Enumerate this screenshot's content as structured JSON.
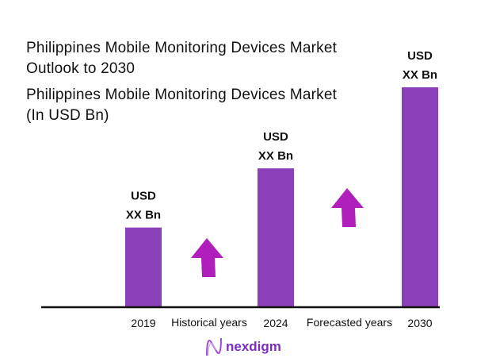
{
  "chart_data": {
    "type": "bar",
    "title": "Philippines Mobile Monitoring Devices Market Outlook to 2030",
    "subtitle": "Philippines Mobile Monitoring Devices Market (In USD Bn)",
    "categories": [
      "2019",
      "2024",
      "2030"
    ],
    "values": [
      null,
      null,
      null
    ],
    "data_labels": [
      [
        "USD",
        "XX Bn"
      ],
      [
        "USD",
        "XX Bn"
      ],
      [
        "USD",
        "XX Bn"
      ]
    ],
    "period_labels": [
      "Historical years",
      "Forecasted years"
    ],
    "grid": false,
    "colors": {
      "bar": "#8a40b8",
      "arrow": "#b01fbb"
    }
  },
  "title_lines": [
    "Philippines Mobile Monitoring Devices Market",
    "Outlook to 2030"
  ],
  "subtitle_lines": [
    "Philippines Mobile Monitoring Devices Market",
    "(In USD Bn)"
  ],
  "brand": "nexdigm"
}
